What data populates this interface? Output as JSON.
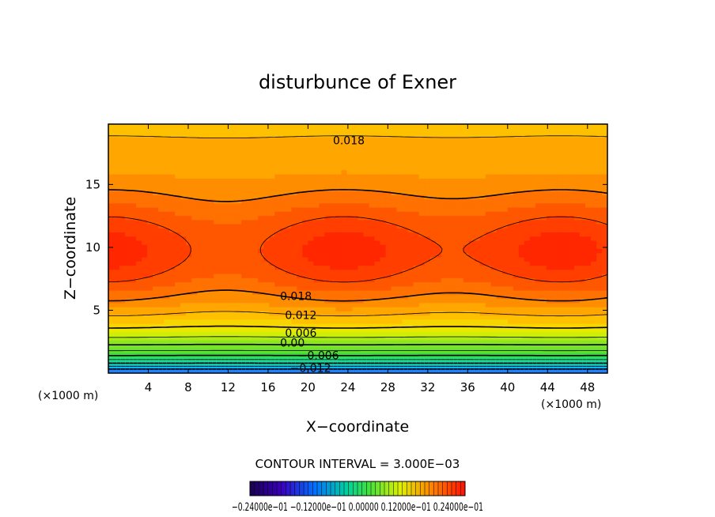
{
  "chart_data": {
    "type": "heatmap",
    "title": "disturbunce of Exner",
    "xlabel": "X−coordinate",
    "ylabel": "Z−coordinate",
    "x_unit_label_left": "(×1000 m)",
    "x_unit_label_right": "(×1000 m)",
    "xlim": [
      0,
      50
    ],
    "ylim": [
      0,
      19.8
    ],
    "xticks": [
      4,
      8,
      12,
      16,
      20,
      24,
      28,
      32,
      36,
      40,
      44,
      48
    ],
    "yticks": [
      5,
      10,
      15
    ],
    "contour_interval_label": "CONTOUR INTERVAL = 3.000E−03",
    "contour_labels": [
      {
        "text": "0.018",
        "x": 22.5,
        "z": 18.2
      },
      {
        "text": "0.018",
        "x": 17.2,
        "z": 5.8
      },
      {
        "text": "0.012",
        "x": 17.7,
        "z": 4.3
      },
      {
        "text": "0.006",
        "x": 17.7,
        "z": 2.9
      },
      {
        "text": "0.00",
        "x": 17.2,
        "z": 2.1
      },
      {
        "text": "−0.006",
        "x": 19.0,
        "z": 1.1
      },
      {
        "text": "−0.012",
        "x": 18.2,
        "z": 0.1
      }
    ],
    "colorbar_label": "−0.24000e−01 −0.12000e−01 0.00000 0.12000e−01 0.24000e−01",
    "colorbar_range": [
      -0.024,
      0.024
    ],
    "field_description_values": {
      "max_centers": [
        {
          "x": 0,
          "z": 9.6
        },
        {
          "x": 23.5,
          "z": 9.6
        },
        {
          "x": 45.5,
          "z": 9.6
        }
      ],
      "top_value": 0.016,
      "bottom_value": -0.015
    },
    "colors": {
      "low": "#1a8cff",
      "zero": "#33cc33",
      "mid": "#ffee00",
      "high": "#ff1a00"
    }
  }
}
